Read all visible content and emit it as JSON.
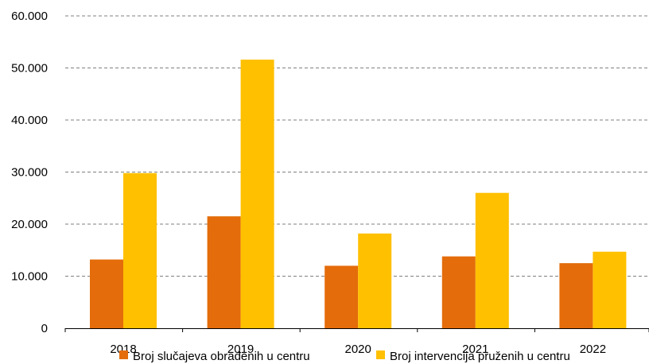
{
  "chart_data": {
    "type": "bar",
    "categories": [
      "2018",
      "2019",
      "2020",
      "2021",
      "2022"
    ],
    "series": [
      {
        "name": "Broj slučajeva obrađenih u centru",
        "color": "#E46C0A",
        "values": [
          13200,
          21500,
          12000,
          13800,
          12500
        ]
      },
      {
        "name": "Broj intervencija pruženih u centru",
        "color": "#FFC000",
        "values": [
          29800,
          51600,
          18200,
          26000,
          14700
        ]
      }
    ],
    "ylim": [
      0,
      60000
    ],
    "yticks": [
      0,
      10000,
      20000,
      30000,
      40000,
      50000,
      60000
    ],
    "ytick_labels": [
      "0",
      "10.000",
      "20.000",
      "30.000",
      "40.000",
      "50.000",
      "60.000"
    ],
    "grid": true,
    "legend_position": "bottom",
    "title": "",
    "xlabel": "",
    "ylabel": ""
  }
}
